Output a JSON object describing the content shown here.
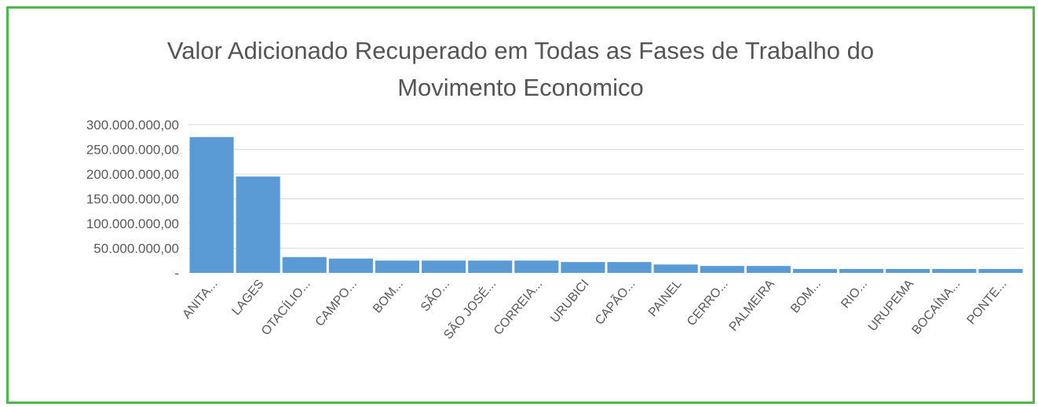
{
  "chart_data": {
    "type": "bar",
    "title_lines": [
      "Valor Adicionado Recuperado em Todas as Fases de Trabalho do",
      "Movimento Economico"
    ],
    "categories": [
      "ANITA...",
      "LAGES",
      "OTACÍLIO...",
      "CAMPO...",
      "BOM...",
      "SÃO...",
      "SÃO JOSÉ...",
      "CORREIA...",
      "URUBICI",
      "CAPÃO...",
      "PAINEL",
      "CERRO...",
      "PALMEIRA",
      "BOM...",
      "RIO...",
      "URUPEMA",
      "BOCAÍNA...",
      "PONTE..."
    ],
    "values": [
      275000000,
      195000000,
      32000000,
      29000000,
      25000000,
      25000000,
      25000000,
      25000000,
      22000000,
      22000000,
      17000000,
      14000000,
      14000000,
      8000000,
      8000000,
      8000000,
      8000000,
      8000000
    ],
    "ylim": [
      0,
      300000000
    ],
    "yticks": [
      0,
      50000000,
      100000000,
      150000000,
      200000000,
      250000000,
      300000000
    ],
    "ytick_labels": [
      "-",
      "50.000.000,00",
      "100.000.000,00",
      "150.000.000,00",
      "200.000.000,00",
      "250.000.000,00",
      "300.000.000,00"
    ],
    "bar_color": "#5b9bd5",
    "grid": true,
    "legend": "none"
  },
  "frame_color": "#4fb84b"
}
